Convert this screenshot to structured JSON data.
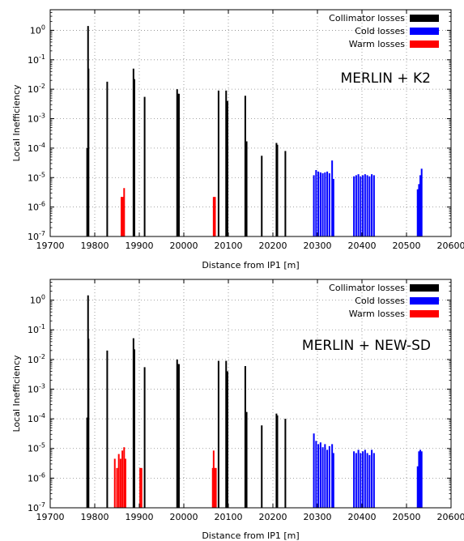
{
  "chart_data": [
    {
      "type": "bar",
      "annotation": "MERLIN + K2",
      "xlabel": "Distance from IP1 [m]",
      "ylabel": "Local Inefficiency",
      "xlim": [
        19700,
        20600
      ],
      "ylim": [
        1e-07,
        5
      ],
      "yscale": "log",
      "grid": true,
      "legend_position": "top-right",
      "x_ticks": [
        "19700",
        "19800",
        "19900",
        "20000",
        "20100",
        "20200",
        "20300",
        "20400",
        "20500",
        "20600"
      ],
      "y_ticks": [
        {
          "base": "10",
          "exp": "0"
        },
        {
          "base": "10",
          "exp": "-1"
        },
        {
          "base": "10",
          "exp": "-2"
        },
        {
          "base": "10",
          "exp": "-3"
        },
        {
          "base": "10",
          "exp": "-4"
        },
        {
          "base": "10",
          "exp": "-5"
        },
        {
          "base": "10",
          "exp": "-6"
        },
        {
          "base": "10",
          "exp": "-7"
        }
      ],
      "series": [
        {
          "name": "Collimator losses",
          "color": "#000000",
          "points": [
            [
              19783,
              0.0001
            ],
            [
              19785,
              1.4
            ],
            [
              19786,
              0.05
            ],
            [
              19828,
              0.018
            ],
            [
              19887,
              0.05
            ],
            [
              19889,
              0.022
            ],
            [
              19912,
              0.0055
            ],
            [
              19985,
              0.01
            ],
            [
              19987,
              0.007
            ],
            [
              19989,
              0.007
            ],
            [
              20078,
              0.009
            ],
            [
              20095,
              0.009
            ],
            [
              20098,
              0.004
            ],
            [
              20138,
              0.006
            ],
            [
              20141,
              0.00017
            ],
            [
              20175,
              5.5e-05
            ],
            [
              20208,
              0.00015
            ],
            [
              20210,
              0.00013
            ],
            [
              20228,
              8e-05
            ]
          ]
        },
        {
          "name": "Cold losses",
          "color": "#0000ff",
          "points": [
            [
              20292,
              1.2e-05
            ],
            [
              20297,
              1.8e-05
            ],
            [
              20302,
              1.6e-05
            ],
            [
              20307,
              1.5e-05
            ],
            [
              20312,
              1.4e-05
            ],
            [
              20317,
              1.5e-05
            ],
            [
              20322,
              1.6e-05
            ],
            [
              20327,
              1.4e-05
            ],
            [
              20333,
              3.8e-05
            ],
            [
              20336,
              9e-06
            ],
            [
              20382,
              1.1e-05
            ],
            [
              20387,
              1.2e-05
            ],
            [
              20392,
              1.3e-05
            ],
            [
              20397,
              1.1e-05
            ],
            [
              20402,
              1.2e-05
            ],
            [
              20407,
              1.3e-05
            ],
            [
              20412,
              1.2e-05
            ],
            [
              20417,
              1.1e-05
            ],
            [
              20422,
              1.3e-05
            ],
            [
              20427,
              1.2e-05
            ],
            [
              20525,
              4e-06
            ],
            [
              20528,
              6e-06
            ],
            [
              20531,
              1.2e-05
            ],
            [
              20534,
              2e-05
            ]
          ]
        },
        {
          "name": "Warm losses",
          "color": "#ff0000",
          "points": [
            [
              19860,
              2.2e-06
            ],
            [
              19863,
              2.2e-06
            ],
            [
              19866,
              4.4e-06
            ],
            [
              20067,
              2.2e-06
            ],
            [
              20070,
              2.2e-06
            ]
          ]
        }
      ]
    },
    {
      "type": "bar",
      "annotation": "MERLIN + NEW-SD",
      "xlabel": "Distance from IP1 [m]",
      "ylabel": "Local Inefficiency",
      "xlim": [
        19700,
        20600
      ],
      "ylim": [
        1e-07,
        5
      ],
      "yscale": "log",
      "grid": true,
      "legend_position": "top-right",
      "x_ticks": [
        "19700",
        "19800",
        "19900",
        "20000",
        "20100",
        "20200",
        "20300",
        "20400",
        "20500",
        "20600"
      ],
      "y_ticks": [
        {
          "base": "10",
          "exp": "0"
        },
        {
          "base": "10",
          "exp": "-1"
        },
        {
          "base": "10",
          "exp": "-2"
        },
        {
          "base": "10",
          "exp": "-3"
        },
        {
          "base": "10",
          "exp": "-4"
        },
        {
          "base": "10",
          "exp": "-5"
        },
        {
          "base": "10",
          "exp": "-6"
        },
        {
          "base": "10",
          "exp": "-7"
        }
      ],
      "series": [
        {
          "name": "Collimator losses",
          "color": "#000000",
          "points": [
            [
              19783,
              0.00011
            ],
            [
              19785,
              1.45
            ],
            [
              19786,
              0.05
            ],
            [
              19828,
              0.02
            ],
            [
              19887,
              0.052
            ],
            [
              19889,
              0.022
            ],
            [
              19912,
              0.0055
            ],
            [
              19985,
              0.01
            ],
            [
              19987,
              0.007
            ],
            [
              19989,
              0.007
            ],
            [
              20078,
              0.009
            ],
            [
              20095,
              0.009
            ],
            [
              20098,
              0.004
            ],
            [
              20138,
              0.006
            ],
            [
              20141,
              0.00017
            ],
            [
              20175,
              6e-05
            ],
            [
              20208,
              0.00015
            ],
            [
              20210,
              0.00013
            ],
            [
              20228,
              0.0001
            ]
          ]
        },
        {
          "name": "Cold losses",
          "color": "#0000ff",
          "points": [
            [
              20292,
              3.2e-05
            ],
            [
              20297,
              1.8e-05
            ],
            [
              20302,
              1.4e-05
            ],
            [
              20307,
              1.6e-05
            ],
            [
              20312,
              1.1e-05
            ],
            [
              20317,
              1.4e-05
            ],
            [
              20322,
              9e-06
            ],
            [
              20327,
              1.2e-05
            ],
            [
              20333,
              1.4e-05
            ],
            [
              20336,
              7e-06
            ],
            [
              20382,
              8e-06
            ],
            [
              20387,
              7e-06
            ],
            [
              20392,
              9e-06
            ],
            [
              20397,
              7e-06
            ],
            [
              20402,
              8e-06
            ],
            [
              20407,
              9e-06
            ],
            [
              20412,
              7e-06
            ],
            [
              20417,
              6e-06
            ],
            [
              20422,
              9e-06
            ],
            [
              20427,
              7e-06
            ],
            [
              20525,
              2.5e-06
            ],
            [
              20528,
              8e-06
            ],
            [
              20531,
              9e-06
            ],
            [
              20534,
              8e-06
            ]
          ]
        },
        {
          "name": "Warm losses",
          "color": "#ff0000",
          "points": [
            [
              19845,
              4.5e-06
            ],
            [
              19850,
              2.2e-06
            ],
            [
              19854,
              6.5e-06
            ],
            [
              19858,
              4.5e-06
            ],
            [
              19862,
              8.5e-06
            ],
            [
              19866,
              1.1e-05
            ],
            [
              19869,
              4.5e-06
            ],
            [
              19902,
              2.2e-06
            ],
            [
              19905,
              2.2e-06
            ],
            [
              20065,
              2.2e-06
            ],
            [
              20067,
              8.5e-06
            ],
            [
              20070,
              2.2e-06
            ],
            [
              20072,
              2.2e-06
            ]
          ]
        }
      ]
    }
  ]
}
